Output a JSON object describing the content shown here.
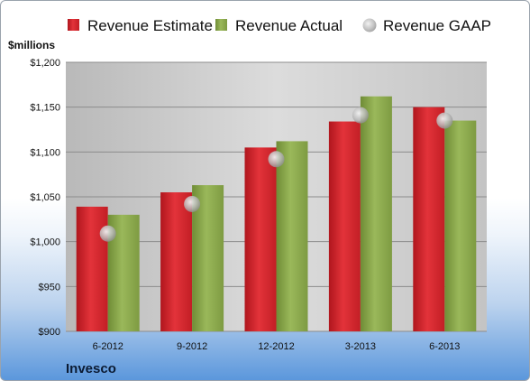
{
  "colors": {
    "estimate": "#d9262e",
    "actual": "#8aa84a",
    "gaap": "#c7c7c7"
  },
  "company": "Invesco",
  "chart_data": {
    "type": "bar",
    "unit_label": "$millions",
    "categories": [
      "6-2012",
      "9-2012",
      "12-2012",
      "3-2013",
      "6-2013"
    ],
    "series": [
      {
        "name": "Revenue Estimate",
        "kind": "bar",
        "values": [
          1039,
          1055,
          1105,
          1134,
          1150
        ]
      },
      {
        "name": "Revenue Actual",
        "kind": "bar",
        "values": [
          1030,
          1063,
          1112,
          1162,
          1135
        ]
      },
      {
        "name": "Revenue GAAP",
        "kind": "marker",
        "values": [
          1009,
          1042,
          1092,
          1141,
          1135
        ]
      }
    ],
    "ylim": [
      900,
      1200
    ],
    "yticks": [
      900,
      950,
      1000,
      1050,
      1100,
      1150,
      1200
    ],
    "ytick_labels": [
      "$900",
      "$950",
      "$1,000",
      "$1,050",
      "$1,100",
      "$1,150",
      "$1,200"
    ],
    "grid": true,
    "legend_position": "top"
  }
}
